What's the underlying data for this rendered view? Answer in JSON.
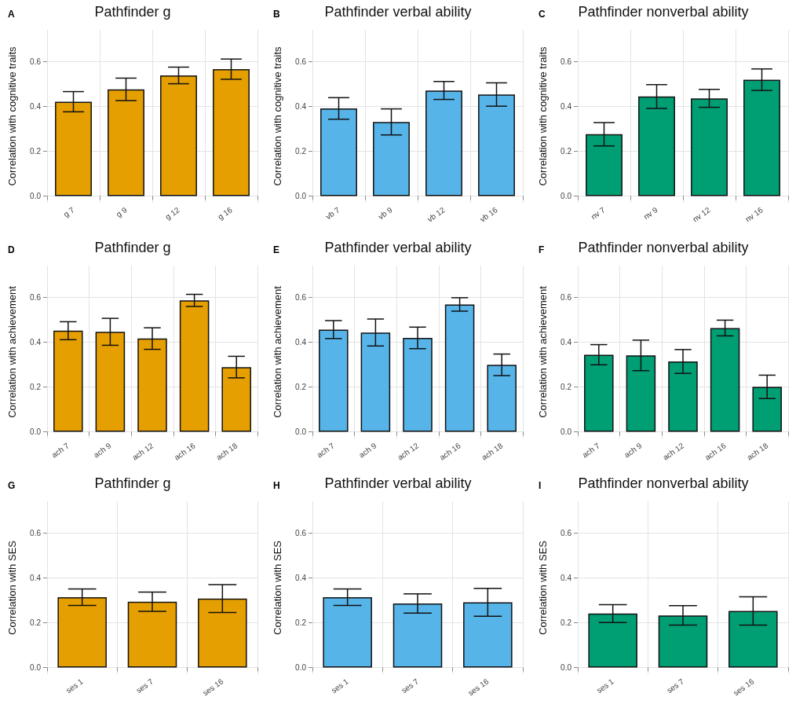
{
  "chart_data": [
    {
      "type": "bar",
      "annotations": [
        "A"
      ],
      "title": "Pathfinder g",
      "ylabel": "Correlation with cognitive traits",
      "categories": [
        "g 7",
        "g 9",
        "g 12",
        "g 16"
      ],
      "values": [
        0.42,
        0.475,
        0.537,
        0.565
      ],
      "errors": [
        0.045,
        0.05,
        0.037,
        0.045
      ],
      "color": "#e69f00",
      "ylim": [
        -0.03,
        0.74
      ],
      "yticks": [
        {
          "value": 0,
          "label": "0.0"
        },
        {
          "value": 0.2,
          "label": "0.2"
        },
        {
          "value": 0.4,
          "label": "0.4"
        },
        {
          "value": 0.6,
          "label": "0.6"
        }
      ],
      "grid": true
    },
    {
      "type": "bar",
      "annotations": [
        "B"
      ],
      "title": "Pathfinder verbal ability",
      "ylabel": "Correlation with cognitive traits",
      "categories": [
        "vb 7",
        "vb 9",
        "vb 12",
        "vb 16"
      ],
      "values": [
        0.39,
        0.33,
        0.47,
        0.452
      ],
      "errors": [
        0.048,
        0.058,
        0.04,
        0.052
      ],
      "color": "#56b4e9",
      "ylim": [
        -0.03,
        0.74
      ],
      "yticks": [
        {
          "value": 0,
          "label": "0.0"
        },
        {
          "value": 0.2,
          "label": "0.2"
        },
        {
          "value": 0.4,
          "label": "0.4"
        },
        {
          "value": 0.6,
          "label": "0.6"
        }
      ],
      "grid": true
    },
    {
      "type": "bar",
      "annotations": [
        "C"
      ],
      "title": "Pathfinder nonverbal ability",
      "ylabel": "Correlation with cognitive traits",
      "categories": [
        "nv 7",
        "nv 9",
        "nv 12",
        "nv 16"
      ],
      "values": [
        0.275,
        0.443,
        0.435,
        0.518
      ],
      "errors": [
        0.052,
        0.053,
        0.04,
        0.048
      ],
      "color": "#009e73",
      "ylim": [
        -0.03,
        0.74
      ],
      "yticks": [
        {
          "value": 0,
          "label": "0.0"
        },
        {
          "value": 0.2,
          "label": "0.2"
        },
        {
          "value": 0.4,
          "label": "0.4"
        },
        {
          "value": 0.6,
          "label": "0.6"
        }
      ],
      "grid": true
    },
    {
      "type": "bar",
      "annotations": [
        "D"
      ],
      "title": "Pathfinder g",
      "ylabel": "Correlation with achievement",
      "categories": [
        "ach 7",
        "ach 9",
        "ach 12",
        "ach 16",
        "ach 18"
      ],
      "values": [
        0.45,
        0.445,
        0.415,
        0.585,
        0.288
      ],
      "errors": [
        0.04,
        0.06,
        0.048,
        0.027,
        0.048
      ],
      "color": "#e69f00",
      "ylim": [
        -0.03,
        0.74
      ],
      "yticks": [
        {
          "value": 0,
          "label": "0.0"
        },
        {
          "value": 0.2,
          "label": "0.2"
        },
        {
          "value": 0.4,
          "label": "0.4"
        },
        {
          "value": 0.6,
          "label": "0.6"
        }
      ],
      "grid": true
    },
    {
      "type": "bar",
      "annotations": [
        "E"
      ],
      "title": "Pathfinder verbal ability",
      "ylabel": "Correlation with achievement",
      "categories": [
        "ach 7",
        "ach 9",
        "ach 12",
        "ach 16",
        "ach 18"
      ],
      "values": [
        0.455,
        0.442,
        0.418,
        0.567,
        0.298
      ],
      "errors": [
        0.04,
        0.06,
        0.048,
        0.03,
        0.048
      ],
      "color": "#56b4e9",
      "ylim": [
        -0.03,
        0.74
      ],
      "yticks": [
        {
          "value": 0,
          "label": "0.0"
        },
        {
          "value": 0.2,
          "label": "0.2"
        },
        {
          "value": 0.4,
          "label": "0.4"
        },
        {
          "value": 0.6,
          "label": "0.6"
        }
      ],
      "grid": true
    },
    {
      "type": "bar",
      "annotations": [
        "F"
      ],
      "title": "Pathfinder nonverbal ability",
      "ylabel": "Correlation with achievement",
      "categories": [
        "ach 7",
        "ach 9",
        "ach 12",
        "ach 16",
        "ach 18"
      ],
      "values": [
        0.343,
        0.34,
        0.313,
        0.462,
        0.2
      ],
      "errors": [
        0.045,
        0.068,
        0.053,
        0.035,
        0.052
      ],
      "color": "#009e73",
      "ylim": [
        -0.03,
        0.74
      ],
      "yticks": [
        {
          "value": 0,
          "label": "0.0"
        },
        {
          "value": 0.2,
          "label": "0.2"
        },
        {
          "value": 0.4,
          "label": "0.4"
        },
        {
          "value": 0.6,
          "label": "0.6"
        }
      ],
      "grid": true
    },
    {
      "type": "bar",
      "annotations": [
        "G"
      ],
      "title": "Pathfinder g",
      "ylabel": "Correlation with SES",
      "categories": [
        "ses 1",
        "ses 7",
        "ses 16"
      ],
      "values": [
        0.313,
        0.293,
        0.307
      ],
      "errors": [
        0.037,
        0.043,
        0.062
      ],
      "color": "#e69f00",
      "ylim": [
        -0.03,
        0.74
      ],
      "yticks": [
        {
          "value": 0,
          "label": "0.0"
        },
        {
          "value": 0.2,
          "label": "0.2"
        },
        {
          "value": 0.4,
          "label": "0.4"
        },
        {
          "value": 0.6,
          "label": "0.6"
        }
      ],
      "grid": true
    },
    {
      "type": "bar",
      "annotations": [
        "H"
      ],
      "title": "Pathfinder verbal ability",
      "ylabel": "Correlation with SES",
      "categories": [
        "ses 1",
        "ses 7",
        "ses 16"
      ],
      "values": [
        0.313,
        0.285,
        0.29
      ],
      "errors": [
        0.037,
        0.043,
        0.062
      ],
      "color": "#56b4e9",
      "ylim": [
        -0.03,
        0.74
      ],
      "yticks": [
        {
          "value": 0,
          "label": "0.0"
        },
        {
          "value": 0.2,
          "label": "0.2"
        },
        {
          "value": 0.4,
          "label": "0.4"
        },
        {
          "value": 0.6,
          "label": "0.6"
        }
      ],
      "grid": true
    },
    {
      "type": "bar",
      "annotations": [
        "I"
      ],
      "title": "Pathfinder nonverbal ability",
      "ylabel": "Correlation with SES",
      "categories": [
        "ses 1",
        "ses 7",
        "ses 16"
      ],
      "values": [
        0.24,
        0.232,
        0.252
      ],
      "errors": [
        0.04,
        0.043,
        0.063
      ],
      "color": "#009e73",
      "ylim": [
        -0.03,
        0.74
      ],
      "yticks": [
        {
          "value": 0,
          "label": "0.0"
        },
        {
          "value": 0.2,
          "label": "0.2"
        },
        {
          "value": 0.4,
          "label": "0.4"
        },
        {
          "value": 0.6,
          "label": "0.6"
        }
      ],
      "grid": true
    }
  ]
}
